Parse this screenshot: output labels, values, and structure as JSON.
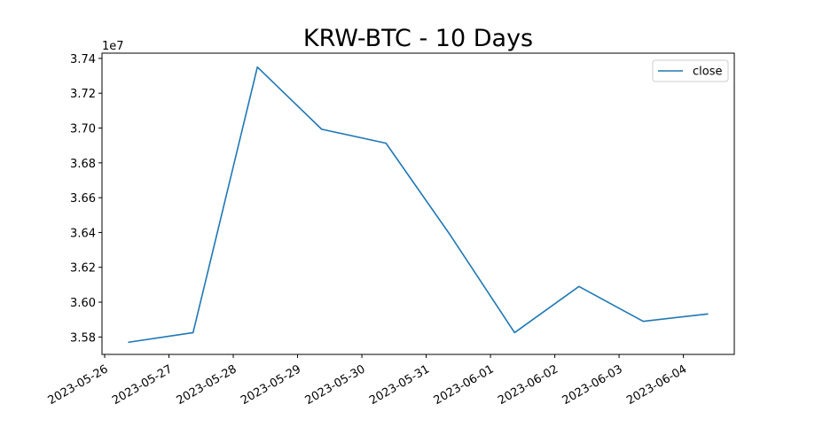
{
  "chart_data": {
    "type": "line",
    "title": "KRW-BTC - 10 Days",
    "xlabel": "",
    "ylabel": "",
    "y_offset_label": "1e7",
    "x": [
      "2023-05-26 09:00",
      "2023-05-27 09:00",
      "2023-05-28 09:00",
      "2023-05-29 09:00",
      "2023-05-30 09:00",
      "2023-05-31 09:00",
      "2023-06-01 09:00",
      "2023-06-02 09:00",
      "2023-06-03 09:00",
      "2023-06-04 09:00"
    ],
    "series": [
      {
        "name": "close",
        "color": "#1f77b4",
        "values": [
          35770000,
          35825000,
          37350000,
          36993000,
          36913000,
          36385000,
          35825000,
          36090000,
          35890000,
          35932000
        ]
      }
    ],
    "ylim": [
      35700000,
      37430000
    ],
    "xlim": [
      "2023-05-25 23:00",
      "2023-06-04 19:00"
    ],
    "x_ticks": [
      "2023-05-26",
      "2023-05-27",
      "2023-05-28",
      "2023-05-29",
      "2023-05-30",
      "2023-05-31",
      "2023-06-01",
      "2023-06-02",
      "2023-06-03",
      "2023-06-04"
    ],
    "y_ticks": [
      35800000,
      36000000,
      36200000,
      36400000,
      36600000,
      36800000,
      37000000,
      37200000,
      37400000
    ],
    "y_tick_labels": [
      "3.58",
      "3.60",
      "3.62",
      "3.64",
      "3.66",
      "3.68",
      "3.70",
      "3.72",
      "3.74"
    ],
    "legend": {
      "position": "top-right"
    },
    "grid": false
  }
}
